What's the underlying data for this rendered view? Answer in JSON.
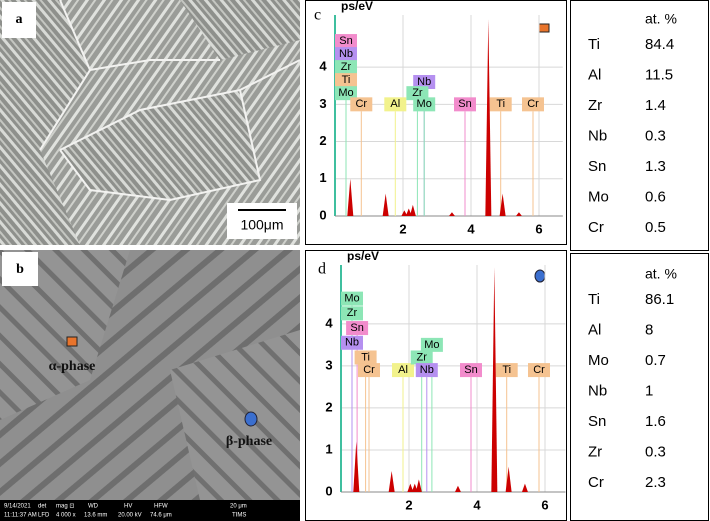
{
  "micrographs": [
    {
      "label": "a",
      "scale_bar": "100μm"
    },
    {
      "label": "b",
      "phases": [
        "α-phase",
        "β-phase"
      ],
      "info_bar": [
        "9/14/2021",
        "11:11:37 AM",
        "det",
        "LFD",
        "mag ⊡",
        "4 000 x",
        "WD",
        "13.6 mm",
        "HV",
        "20.00 kV",
        "HFW",
        "74.6 μm",
        "20 μm",
        "TIMS"
      ]
    }
  ],
  "spectra": [
    {
      "type": "spectrum",
      "label": "c",
      "y_label": "ps/eV",
      "xlim": [
        0,
        6.7
      ],
      "ylim": [
        0,
        5.4
      ],
      "xticks": [
        2,
        4,
        6
      ],
      "yticks": [
        0,
        1,
        2,
        3,
        4
      ],
      "grid": true,
      "color": "#cc0000",
      "peaks": {
        "x": [
          0.45,
          1.49,
          2.04,
          2.17,
          2.29,
          3.44,
          4.51,
          4.93,
          5.41
        ],
        "values": [
          1.0,
          0.6,
          0.15,
          0.2,
          0.3,
          0.1,
          5.3,
          0.6,
          0.1
        ]
      },
      "element_labels": [
        {
          "text": "Sn",
          "color": "#f28ccc"
        },
        {
          "text": "Nb",
          "color": "#b590f0"
        },
        {
          "text": "Zr",
          "color": "#8de6b6"
        },
        {
          "text": "Ti",
          "color": "#f5c391"
        },
        {
          "text": "Mo",
          "color": "#8de6b6"
        },
        {
          "text": "Cr",
          "color": "#f5c391"
        },
        {
          "text": "Al",
          "color": "#f2f28c"
        },
        {
          "text": "Nb",
          "color": "#b590f0"
        },
        {
          "text": "Zr",
          "color": "#8de6b6"
        },
        {
          "text": "Mo",
          "color": "#8de6b6"
        },
        {
          "text": "Sn",
          "color": "#f28ccc"
        },
        {
          "text": "Ti",
          "color": "#f5c391"
        },
        {
          "text": "Cr",
          "color": "#f5c391"
        }
      ]
    },
    {
      "type": "spectrum",
      "label": "d",
      "y_label": "ps/eV",
      "xlim": [
        0,
        6.6
      ],
      "ylim": [
        0,
        5.4
      ],
      "xticks": [
        2,
        4,
        6
      ],
      "yticks": [
        0,
        1,
        2,
        3,
        4
      ],
      "grid": true,
      "color": "#cc0000",
      "peaks": {
        "x": [
          0.45,
          1.49,
          2.04,
          2.17,
          2.29,
          3.44,
          4.51,
          4.93,
          5.41
        ],
        "values": [
          1.2,
          0.5,
          0.2,
          0.2,
          0.3,
          0.15,
          5.35,
          0.6,
          0.2
        ]
      },
      "element_labels": [
        {
          "text": "Mo",
          "color": "#8de6b6"
        },
        {
          "text": "Zr",
          "color": "#8de6b6"
        },
        {
          "text": "Sn",
          "color": "#f28ccc"
        },
        {
          "text": "Nb",
          "color": "#b590f0"
        },
        {
          "text": "Ti",
          "color": "#f5c391"
        },
        {
          "text": "Cr",
          "color": "#f5c391"
        },
        {
          "text": "Al",
          "color": "#f2f28c"
        },
        {
          "text": "Mo",
          "color": "#8de6b6"
        },
        {
          "text": "Zr",
          "color": "#8de6b6"
        },
        {
          "text": "Nb",
          "color": "#b590f0"
        },
        {
          "text": "Sn",
          "color": "#f28ccc"
        },
        {
          "text": "Ti",
          "color": "#f5c391"
        },
        {
          "text": "Cr",
          "color": "#f5c391"
        }
      ]
    }
  ],
  "tables": [
    {
      "header": "at. %",
      "rows": [
        [
          "Ti",
          84.4
        ],
        [
          "Al",
          11.5
        ],
        [
          "Zr",
          1.4
        ],
        [
          "Nb",
          0.3
        ],
        [
          "Sn",
          1.3
        ],
        [
          "Mo",
          0.6
        ],
        [
          "Cr",
          0.5
        ]
      ]
    },
    {
      "header": "at. %",
      "rows": [
        [
          "Ti",
          86.1
        ],
        [
          "Al",
          8
        ],
        [
          "Mo",
          0.7
        ],
        [
          "Nb",
          1
        ],
        [
          "Sn",
          1.6
        ],
        [
          "Zr",
          0.3
        ],
        [
          "Cr",
          2.3
        ]
      ]
    }
  ]
}
